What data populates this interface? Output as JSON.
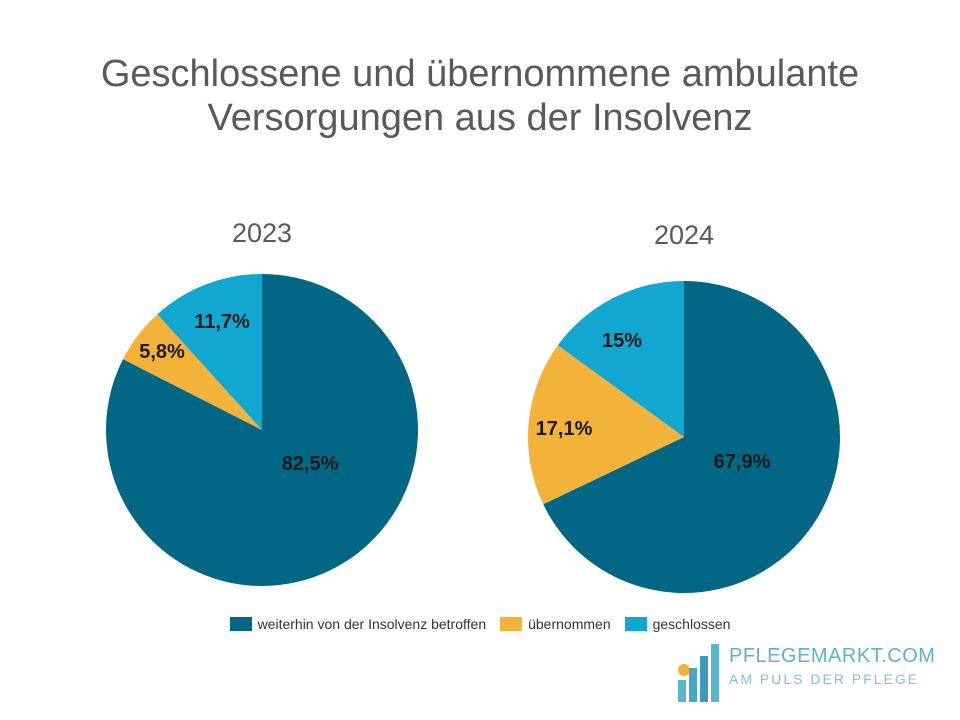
{
  "title": "Geschlossene und übernommene ambulante Versorgungen aus der Insolvenz",
  "colors": {
    "weiterhin": "#016784",
    "uebernommen": "#f3b23a",
    "geschlossen": "#12a7d1"
  },
  "legend": [
    {
      "label": "weiterhin von der Insolvenz betroffen",
      "color": "#016784"
    },
    {
      "label": "übernommen",
      "color": "#f3b23a"
    },
    {
      "label": "geschlossen",
      "color": "#12a7d1"
    }
  ],
  "chart_data": [
    {
      "type": "pie",
      "title": "2023",
      "slices": [
        {
          "name": "weiterhin von der Insolvenz betroffen",
          "value": 82.5,
          "label": "82,5%",
          "color": "#016784"
        },
        {
          "name": "übernommen",
          "value": 5.8,
          "label": "5,8%",
          "color": "#f3b23a"
        },
        {
          "name": "geschlossen",
          "value": 11.7,
          "label": "11,7%",
          "color": "#12a7d1"
        }
      ]
    },
    {
      "type": "pie",
      "title": "2024",
      "slices": [
        {
          "name": "weiterhin von der Insolvenz betroffen",
          "value": 67.9,
          "label": "67,9%",
          "color": "#016784"
        },
        {
          "name": "übernommen",
          "value": 17.1,
          "label": "17,1%",
          "color": "#f3b23a"
        },
        {
          "name": "geschlossen",
          "value": 15,
          "label": "15%",
          "color": "#12a7d1"
        }
      ]
    }
  ],
  "logo": {
    "name": "PFLEGEMARKT.COM",
    "tagline": "AM PULS DER PFLEGE"
  }
}
